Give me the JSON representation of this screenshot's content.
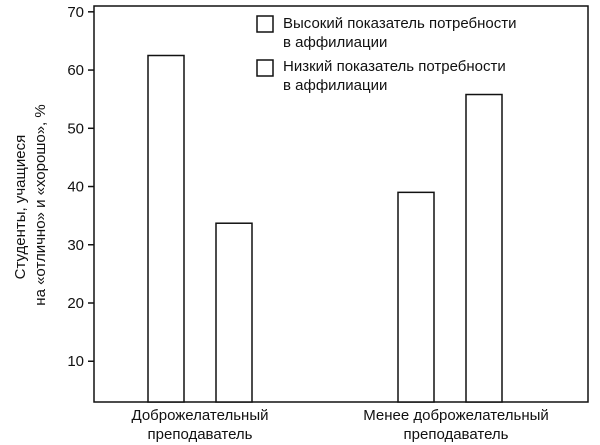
{
  "chart_data": {
    "type": "bar",
    "categories": [
      [
        "Доброжелательный",
        "преподаватель"
      ],
      [
        "Менее доброжелательный",
        "преподаватель"
      ]
    ],
    "series": [
      {
        "name": [
          "Высокий показатель потребности",
          "в аффилиации"
        ],
        "values": [
          62.5,
          39
        ]
      },
      {
        "name": [
          "Низкий показатель потребности",
          "в аффилиации"
        ],
        "values": [
          33.7,
          55.8
        ]
      }
    ],
    "ylabel": [
      "Студенты, учащиеся",
      "на «отлично» и «хорошо», %"
    ],
    "yticks": [
      10,
      20,
      30,
      40,
      50,
      60,
      70
    ],
    "ylim": [
      3,
      71
    ],
    "grid": false,
    "legend_position": "top-right",
    "colors": {
      "bar_fill": "#ffffff",
      "bar_stroke": "#111111",
      "axis": "#111111"
    }
  }
}
